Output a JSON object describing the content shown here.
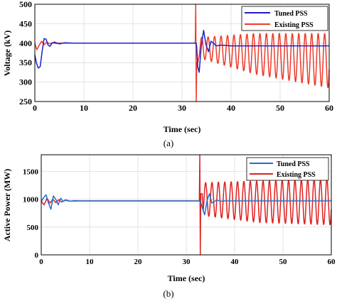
{
  "chart_data": [
    {
      "type": "line",
      "panel_label": "(a)",
      "xlabel": "Time (sec)",
      "ylabel": "Voltage (kV)",
      "xlim": [
        0,
        60
      ],
      "ylim": [
        250,
        500
      ],
      "xticks": [
        0,
        10,
        20,
        30,
        40,
        50,
        60
      ],
      "yticks": [
        250,
        300,
        350,
        400,
        450,
        500
      ],
      "grid": true,
      "legend_position": "top-right",
      "fault_time": 32.8,
      "series": [
        {
          "name": "Tuned PSS",
          "color": "#1f1fc8",
          "x": [
            0,
            0.3,
            0.7,
            1.1,
            1.5,
            1.9,
            2.3,
            2.7,
            3.1,
            3.5,
            4.0,
            5.0,
            6.0,
            8.0,
            10,
            20,
            32.7,
            32.9,
            33.0,
            33.2,
            33.5,
            33.9,
            34.4,
            34.9,
            35.4,
            35.9,
            36.4,
            37.0,
            38.0,
            40,
            50,
            60
          ],
          "y": [
            370,
            350,
            336,
            340,
            380,
            412,
            410,
            395,
            392,
            400,
            403,
            398,
            401,
            400,
            400,
            400,
            400,
            400,
            390,
            340,
            325,
            390,
            433,
            395,
            378,
            405,
            400,
            393,
            395,
            393,
            393,
            393
          ]
        },
        {
          "name": "Existing PSS",
          "color": "#ee3a2a",
          "x": [
            0,
            0.4,
            0.9,
            1.4,
            1.9,
            2.4,
            3.0,
            3.6,
            4.3,
            5.0,
            6.0,
            8.0,
            10,
            20,
            32.7,
            32.8,
            32.9,
            33.0,
            33.2
          ],
          "y": [
            400,
            383,
            395,
            405,
            396,
            402,
            399,
            401,
            399,
            400,
            400,
            400,
            400,
            400,
            400,
            500,
            250,
            350,
            350
          ],
          "oscillation": {
            "start": 33.5,
            "end": 60,
            "period": 1.32,
            "peaks": [
              [
                34.0,
                415
              ],
              [
                45.0,
                425
              ],
              [
                60.0,
                425
              ]
            ],
            "troughs": [
              [
                34.0,
                360
              ],
              [
                45.0,
                320
              ],
              [
                60.0,
                285
              ]
            ]
          }
        }
      ]
    },
    {
      "type": "line",
      "panel_label": "(b)",
      "xlabel": "Time (sec)",
      "ylabel": "Active Power (MW)",
      "xlim": [
        0,
        60
      ],
      "ylim": [
        0,
        1800
      ],
      "xticks": [
        0,
        10,
        20,
        30,
        40,
        50,
        60
      ],
      "yticks": [
        0,
        500,
        1000,
        1500
      ],
      "grid": true,
      "legend_position": "top-right",
      "fault_time": 32.8,
      "series": [
        {
          "name": "Tuned PSS",
          "color": "#1f6fd0",
          "x": [
            0,
            0.5,
            1.0,
            1.5,
            2.0,
            2.5,
            3.0,
            3.5,
            4.0,
            4.5,
            5.0,
            6.0,
            7.0,
            8.0,
            10,
            20,
            32.7,
            32.9,
            33.3,
            33.8,
            34.3,
            34.8,
            35.3,
            35.8,
            36.3,
            37.0,
            38.0,
            40,
            50,
            60
          ],
          "y": [
            960,
            1030,
            1080,
            930,
            820,
            1060,
            1000,
            900,
            1020,
            960,
            990,
            965,
            975,
            970,
            970,
            970,
            970,
            970,
            850,
            720,
            980,
            1100,
            930,
            960,
            985,
            965,
            970,
            970,
            970,
            970
          ]
        },
        {
          "name": "Existing PSS",
          "color": "#e02020",
          "x": [
            0,
            0.6,
            1.2,
            1.8,
            2.4,
            3.0,
            3.6,
            4.2,
            5.0,
            6.0,
            8.0,
            10,
            20,
            32.7,
            32.8,
            32.9,
            33.0,
            33.3
          ],
          "y": [
            960,
            900,
            1020,
            930,
            1000,
            940,
            990,
            950,
            980,
            965,
            970,
            970,
            970,
            970,
            1800,
            0,
            1100,
            1100
          ],
          "oscillation": {
            "start": 33.5,
            "end": 60,
            "period": 1.32,
            "peaks": [
              [
                34.0,
                1300
              ],
              [
                45.0,
                1330
              ],
              [
                60.0,
                1360
              ]
            ],
            "troughs": [
              [
                34.0,
                700
              ],
              [
                45.0,
                580
              ],
              [
                60.0,
                540
              ]
            ]
          }
        }
      ]
    }
  ]
}
